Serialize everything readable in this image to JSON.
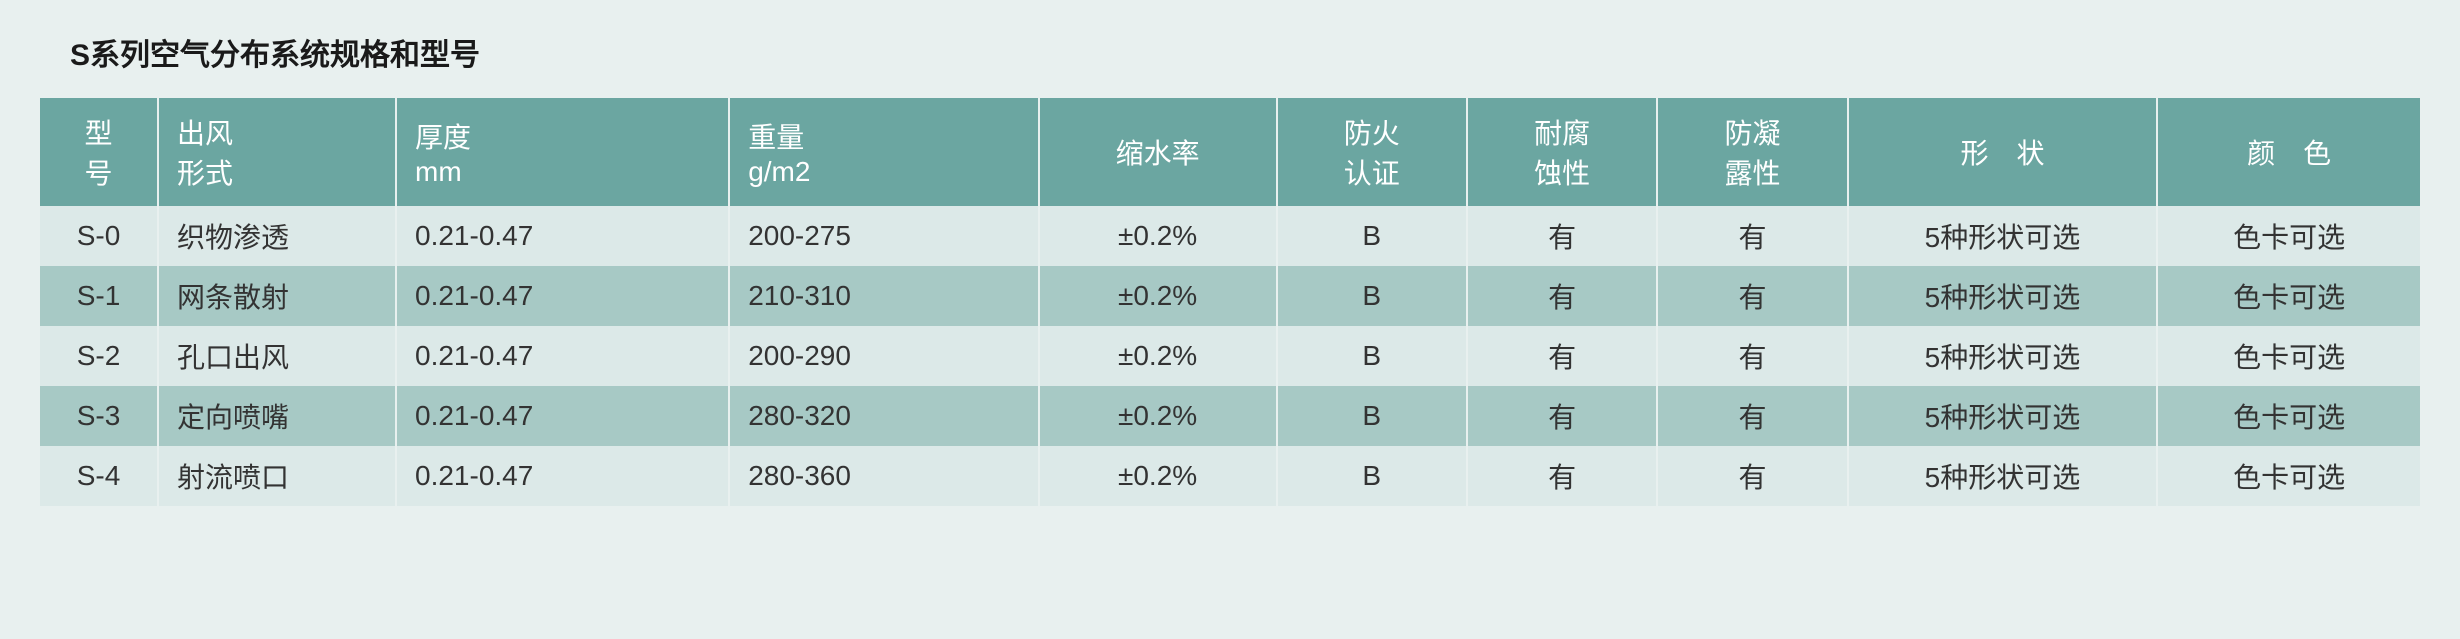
{
  "title": "S系列空气分布系统规格和型号",
  "title_fontsize": 30,
  "page_bg": "#e8f0ef",
  "header_bg": "#6ba6a1",
  "header_text_color": "#ffffff",
  "row_odd_bg": "#dce9e8",
  "row_even_bg": "#a7c9c5",
  "text_color": "#333333",
  "cell_fontsize": 28,
  "header_fontsize": 28,
  "col_widths_pct": [
    5,
    10,
    14,
    13,
    10,
    8,
    8,
    8,
    13,
    11
  ],
  "columns": [
    {
      "line1": "型",
      "line2": "号",
      "align": "center"
    },
    {
      "line1": "出风",
      "line2": "形式",
      "align": "left"
    },
    {
      "line1": "厚度",
      "line2": "mm",
      "align": "left"
    },
    {
      "line1": "重量",
      "line2": "g/m2",
      "align": "left"
    },
    {
      "line1": "缩水率",
      "line2": "",
      "align": "center"
    },
    {
      "line1": "防火",
      "line2": "认证",
      "align": "center"
    },
    {
      "line1": "耐腐",
      "line2": "蚀性",
      "align": "center"
    },
    {
      "line1": "防凝",
      "line2": "露性",
      "align": "center"
    },
    {
      "line1": "形　状",
      "line2": "",
      "align": "center"
    },
    {
      "line1": "颜　色",
      "line2": "",
      "align": "center"
    }
  ],
  "rows": [
    [
      "S-0",
      "织物渗透",
      "0.21-0.47",
      "200-275",
      "±0.2%",
      "B",
      "有",
      "有",
      "5种形状可选",
      "色卡可选"
    ],
    [
      "S-1",
      "网条散射",
      "0.21-0.47",
      "210-310",
      "±0.2%",
      "B",
      "有",
      "有",
      "5种形状可选",
      "色卡可选"
    ],
    [
      "S-2",
      "孔口出风",
      "0.21-0.47",
      "200-290",
      "±0.2%",
      "B",
      "有",
      "有",
      "5种形状可选",
      "色卡可选"
    ],
    [
      "S-3",
      "定向喷嘴",
      "0.21-0.47",
      "280-320",
      "±0.2%",
      "B",
      "有",
      "有",
      "5种形状可选",
      "色卡可选"
    ],
    [
      "S-4",
      "射流喷口",
      "0.21-0.47",
      "280-360",
      "±0.2%",
      "B",
      "有",
      "有",
      "5种形状可选",
      "色卡可选"
    ]
  ],
  "col_align": [
    "center",
    "left",
    "left",
    "left",
    "center",
    "center",
    "center",
    "center",
    "center",
    "center"
  ]
}
